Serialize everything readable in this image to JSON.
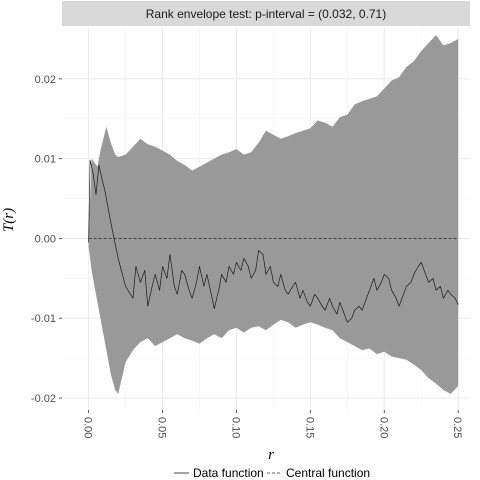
{
  "chart_data": {
    "type": "line",
    "facet_title": "Rank envelope test: p-interval = (0.032, 0.71)",
    "xlabel": "r",
    "ylabel": "T(r)",
    "xlim": [
      -0.018,
      0.258
    ],
    "ylim": [
      -0.0215,
      0.0265
    ],
    "x_ticks": [
      0.0,
      0.05,
      0.1,
      0.15,
      0.2,
      0.25
    ],
    "x_tick_labels": [
      "0.00",
      "0.05",
      "0.10",
      "0.15",
      "0.20",
      "0.25"
    ],
    "y_ticks": [
      -0.02,
      -0.01,
      0.0,
      0.01,
      0.02
    ],
    "y_tick_labels": [
      "-0.02",
      "-0.01",
      "0.00",
      "0.01",
      "0.02"
    ],
    "grid": true,
    "legend_position": "bottom",
    "legend": [
      "Data function",
      "Central function"
    ],
    "envelope": {
      "color": "#999999",
      "x": [
        0.0,
        0.002,
        0.004,
        0.006,
        0.008,
        0.01,
        0.012,
        0.015,
        0.018,
        0.02,
        0.025,
        0.03,
        0.035,
        0.04,
        0.045,
        0.05,
        0.055,
        0.06,
        0.065,
        0.07,
        0.075,
        0.08,
        0.085,
        0.09,
        0.095,
        0.1,
        0.105,
        0.11,
        0.115,
        0.12,
        0.125,
        0.13,
        0.135,
        0.14,
        0.145,
        0.15,
        0.155,
        0.16,
        0.165,
        0.17,
        0.175,
        0.18,
        0.185,
        0.19,
        0.195,
        0.2,
        0.205,
        0.21,
        0.215,
        0.22,
        0.225,
        0.23,
        0.235,
        0.24,
        0.245,
        0.25
      ],
      "upper": [
        0.0,
        0.01,
        0.0095,
        0.009,
        0.011,
        0.0125,
        0.014,
        0.012,
        0.0105,
        0.0102,
        0.0105,
        0.0115,
        0.0125,
        0.0118,
        0.0115,
        0.011,
        0.0105,
        0.0097,
        0.0092,
        0.0085,
        0.009,
        0.0095,
        0.01,
        0.0105,
        0.0108,
        0.0112,
        0.0105,
        0.0108,
        0.012,
        0.0135,
        0.013,
        0.0125,
        0.0128,
        0.0132,
        0.0135,
        0.0138,
        0.0148,
        0.0145,
        0.014,
        0.0152,
        0.0155,
        0.0168,
        0.0172,
        0.0175,
        0.0178,
        0.0188,
        0.0198,
        0.0202,
        0.0215,
        0.0222,
        0.0235,
        0.0245,
        0.0255,
        0.0242,
        0.0245,
        0.025
      ],
      "lower": [
        -0.001,
        -0.004,
        -0.006,
        -0.008,
        -0.01,
        -0.012,
        -0.014,
        -0.017,
        -0.019,
        -0.0195,
        -0.0155,
        -0.014,
        -0.013,
        -0.0125,
        -0.0135,
        -0.013,
        -0.0125,
        -0.012,
        -0.0125,
        -0.0128,
        -0.0132,
        -0.0125,
        -0.012,
        -0.0125,
        -0.0115,
        -0.0112,
        -0.0118,
        -0.0112,
        -0.011,
        -0.0115,
        -0.0108,
        -0.0102,
        -0.0105,
        -0.0112,
        -0.0108,
        -0.0105,
        -0.0108,
        -0.0112,
        -0.0115,
        -0.0125,
        -0.013,
        -0.0135,
        -0.014,
        -0.0138,
        -0.0145,
        -0.0142,
        -0.0148,
        -0.015,
        -0.0152,
        -0.0158,
        -0.0165,
        -0.0175,
        -0.0182,
        -0.019,
        -0.0195,
        -0.0185
      ]
    },
    "series": [
      {
        "name": "Data function",
        "style": "solid",
        "color": "#1a1a1a",
        "x": [
          0.0,
          0.001,
          0.003,
          0.005,
          0.007,
          0.009,
          0.011,
          0.015,
          0.02,
          0.025,
          0.03,
          0.032,
          0.035,
          0.038,
          0.04,
          0.043,
          0.045,
          0.048,
          0.05,
          0.053,
          0.055,
          0.058,
          0.06,
          0.063,
          0.065,
          0.068,
          0.07,
          0.073,
          0.075,
          0.078,
          0.08,
          0.083,
          0.085,
          0.088,
          0.09,
          0.093,
          0.095,
          0.098,
          0.1,
          0.103,
          0.105,
          0.108,
          0.11,
          0.113,
          0.115,
          0.118,
          0.12,
          0.123,
          0.125,
          0.128,
          0.13,
          0.133,
          0.135,
          0.138,
          0.14,
          0.143,
          0.145,
          0.148,
          0.15,
          0.153,
          0.155,
          0.158,
          0.16,
          0.163,
          0.165,
          0.168,
          0.17,
          0.173,
          0.175,
          0.178,
          0.18,
          0.183,
          0.185,
          0.188,
          0.19,
          0.193,
          0.195,
          0.198,
          0.2,
          0.203,
          0.205,
          0.208,
          0.21,
          0.213,
          0.215,
          0.218,
          0.22,
          0.223,
          0.225,
          0.228,
          0.23,
          0.233,
          0.235,
          0.238,
          0.24,
          0.243,
          0.245,
          0.248,
          0.25
        ],
        "values": [
          -0.0005,
          0.0098,
          0.0082,
          0.0055,
          0.0092,
          0.0075,
          0.006,
          0.002,
          -0.0025,
          -0.006,
          -0.0075,
          -0.0035,
          -0.0055,
          -0.004,
          -0.0085,
          -0.006,
          -0.0045,
          -0.0065,
          -0.0035,
          -0.005,
          -0.002,
          -0.006,
          -0.007,
          -0.004,
          -0.0045,
          -0.0065,
          -0.0075,
          -0.0055,
          -0.0035,
          -0.006,
          -0.0045,
          -0.007,
          -0.0088,
          -0.0065,
          -0.0045,
          -0.0055,
          -0.0035,
          -0.0045,
          -0.003,
          -0.004,
          -0.0025,
          -0.0035,
          -0.005,
          -0.004,
          -0.0015,
          -0.002,
          -0.0045,
          -0.0035,
          -0.0055,
          -0.006,
          -0.0045,
          -0.0065,
          -0.007,
          -0.006,
          -0.0055,
          -0.0075,
          -0.0065,
          -0.008,
          -0.0085,
          -0.007,
          -0.0075,
          -0.0085,
          -0.009,
          -0.0075,
          -0.0085,
          -0.0095,
          -0.008,
          -0.0095,
          -0.0105,
          -0.01,
          -0.009,
          -0.0085,
          -0.009,
          -0.0075,
          -0.0065,
          -0.005,
          -0.0065,
          -0.0055,
          -0.0045,
          -0.005,
          -0.0065,
          -0.0075,
          -0.0085,
          -0.007,
          -0.006,
          -0.0055,
          -0.0045,
          -0.0035,
          -0.003,
          -0.0045,
          -0.0055,
          -0.005,
          -0.0065,
          -0.006,
          -0.0075,
          -0.0065,
          -0.007,
          -0.0075,
          -0.0083
        ]
      },
      {
        "name": "Central function",
        "style": "dashed",
        "color": "#333333",
        "x": [
          0.0,
          0.25
        ],
        "values": [
          0.0,
          0.0
        ]
      }
    ]
  }
}
